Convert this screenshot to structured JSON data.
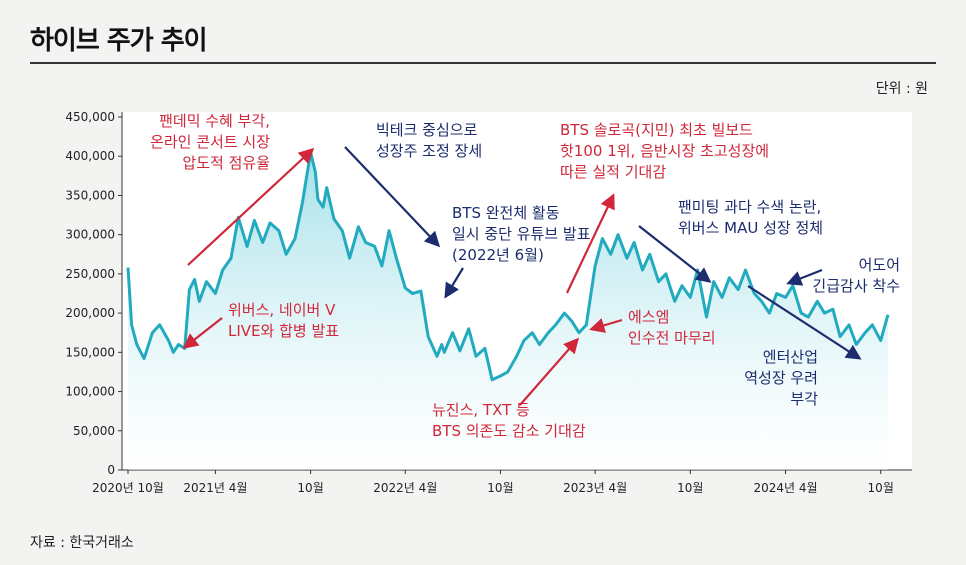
{
  "header": {
    "title": "하이브 주가 추이"
  },
  "unit_label": "단위 : 원",
  "source": "자료 : 한국거래소",
  "colors": {
    "line": "#22aabf",
    "fill_top": "#9fdfe8",
    "red": "#d0273a",
    "blue": "#1c2c6e"
  },
  "chart_data": {
    "type": "area",
    "ylim": [
      0,
      450000
    ],
    "yticks": [
      "0",
      "50,000",
      "100,000",
      "150,000",
      "200,000",
      "250,000",
      "300,000",
      "350,000",
      "400,000",
      "450,000"
    ],
    "xticks": [
      "2020년 10월",
      "2021년 4월",
      "10월",
      "2022년 4월",
      "10월",
      "2023년 4월",
      "10월",
      "2024년 4월",
      "10월"
    ],
    "x": [
      "2020-10-15",
      "2020-10-22",
      "2020-11-01",
      "2020-11-15",
      "2020-12-01",
      "2020-12-15",
      "2021-01-01",
      "2021-01-10",
      "2021-01-20",
      "2021-02-01",
      "2021-02-10",
      "2021-02-20",
      "2021-03-01",
      "2021-03-15",
      "2021-04-01",
      "2021-04-15",
      "2021-05-01",
      "2021-05-15",
      "2021-06-01",
      "2021-06-15",
      "2021-07-01",
      "2021-07-15",
      "2021-08-01",
      "2021-08-15",
      "2021-09-01",
      "2021-09-15",
      "2021-10-01",
      "2021-10-10",
      "2021-10-15",
      "2021-10-25",
      "2021-11-01",
      "2021-11-15",
      "2021-12-01",
      "2021-12-15",
      "2022-01-01",
      "2022-01-15",
      "2022-02-01",
      "2022-02-15",
      "2022-03-01",
      "2022-03-15",
      "2022-04-01",
      "2022-04-15",
      "2022-05-01",
      "2022-05-15",
      "2022-06-01",
      "2022-06-10",
      "2022-06-15",
      "2022-07-01",
      "2022-07-15",
      "2022-08-01",
      "2022-08-15",
      "2022-09-01",
      "2022-09-15",
      "2022-10-01",
      "2022-10-15",
      "2022-11-01",
      "2022-11-15",
      "2022-12-01",
      "2022-12-15",
      "2023-01-01",
      "2023-01-15",
      "2023-02-01",
      "2023-02-15",
      "2023-03-01",
      "2023-03-15",
      "2023-04-01",
      "2023-04-15",
      "2023-05-01",
      "2023-05-15",
      "2023-06-01",
      "2023-06-15",
      "2023-07-01",
      "2023-07-15",
      "2023-08-01",
      "2023-08-15",
      "2023-09-01",
      "2023-09-15",
      "2023-10-01",
      "2023-10-15",
      "2023-11-01",
      "2023-11-15",
      "2023-12-01",
      "2023-12-15",
      "2024-01-01",
      "2024-01-15",
      "2024-02-01",
      "2024-02-15",
      "2024-03-01",
      "2024-03-15",
      "2024-04-01",
      "2024-04-15",
      "2024-05-01",
      "2024-05-15",
      "2024-06-01",
      "2024-06-15",
      "2024-07-01",
      "2024-07-15",
      "2024-08-01",
      "2024-08-15",
      "2024-09-01",
      "2024-09-15",
      "2024-10-01",
      "2024-10-15"
    ],
    "values": [
      258000,
      185000,
      160000,
      142000,
      175000,
      185000,
      165000,
      150000,
      160000,
      155000,
      230000,
      243000,
      215000,
      240000,
      225000,
      255000,
      270000,
      322000,
      285000,
      318000,
      290000,
      315000,
      305000,
      275000,
      295000,
      340000,
      405000,
      380000,
      345000,
      335000,
      360000,
      320000,
      305000,
      270000,
      310000,
      290000,
      285000,
      260000,
      305000,
      270000,
      232000,
      225000,
      228000,
      170000,
      145000,
      160000,
      150000,
      175000,
      152000,
      180000,
      145000,
      155000,
      115000,
      120000,
      125000,
      145000,
      165000,
      175000,
      160000,
      175000,
      185000,
      200000,
      190000,
      175000,
      185000,
      260000,
      295000,
      275000,
      300000,
      270000,
      290000,
      255000,
      275000,
      240000,
      250000,
      215000,
      235000,
      220000,
      255000,
      195000,
      240000,
      220000,
      245000,
      230000,
      255000,
      225000,
      215000,
      200000,
      225000,
      220000,
      235000,
      200000,
      195000,
      215000,
      200000,
      205000,
      170000,
      185000,
      160000,
      175000,
      185000,
      165000,
      198000
    ]
  },
  "annotations": [
    {
      "lines": [
        "팬데믹 수혜 부각,",
        "온라인 콘서트 시장",
        "압도적 점유율"
      ],
      "color": "red"
    },
    {
      "lines": [
        "위버스, 네이버 V",
        "LIVE와 합병 발표"
      ],
      "color": "red"
    },
    {
      "lines": [
        "빅테크 중심으로",
        "성장주 조정 장세"
      ],
      "color": "blue"
    },
    {
      "lines": [
        "BTS 완전체 활동",
        "일시 중단 유튜브 발표",
        "(2022년 6월)"
      ],
      "color": "blue"
    },
    {
      "lines": [
        "뉴진스, TXT 등",
        "BTS 의존도 감소 기대감"
      ],
      "color": "red"
    },
    {
      "lines": [
        "BTS 솔로곡(지민) 최초 빌보드",
        "핫100 1위, 음반시장 초고성장에",
        "따른 실적 기대감"
      ],
      "color": "red"
    },
    {
      "lines": [
        "에스엠",
        "인수전 마무리"
      ],
      "color": "red"
    },
    {
      "lines": [
        "팬미팅 과다 수색 논란,",
        "위버스 MAU 성장 정체"
      ],
      "color": "blue"
    },
    {
      "lines": [
        "어도어",
        "긴급감사 착수"
      ],
      "color": "blue"
    },
    {
      "lines": [
        "엔터산업",
        "역성장 우려",
        "부각"
      ],
      "color": "blue"
    }
  ]
}
